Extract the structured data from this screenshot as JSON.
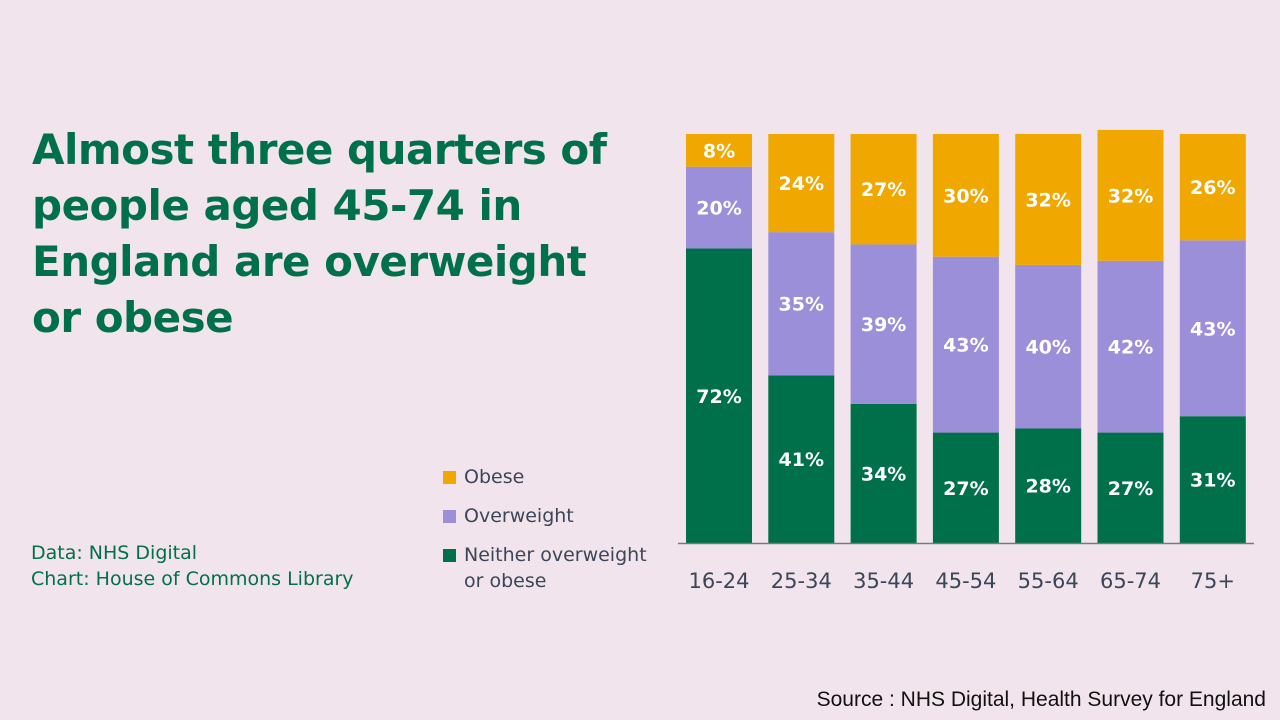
{
  "title": "Almost three quarters of people aged 45-74 in England are overweight or obese",
  "credits": {
    "data": "Data: NHS Digital",
    "chart": "Chart: House of Commons Library"
  },
  "source": "Source : NHS Digital, Health Survey for England",
  "legend": {
    "placement": "left of chart, bottom",
    "items": [
      {
        "label": "Obese",
        "color": "#f0a800"
      },
      {
        "label": "Overweight",
        "color": "#9b8fd9"
      },
      {
        "label": "Neither overweight or obese",
        "color": "#00704a"
      }
    ]
  },
  "chart_data": {
    "type": "bar",
    "stacked": true,
    "categories": [
      "16-24",
      "25-34",
      "35-44",
      "45-54",
      "55-64",
      "65-74",
      "75+"
    ],
    "series": [
      {
        "name": "Neither overweight or obese",
        "color": "#00704a",
        "values": [
          72,
          41,
          34,
          27,
          28,
          27,
          31
        ]
      },
      {
        "name": "Overweight",
        "color": "#9b8fd9",
        "values": [
          20,
          35,
          39,
          43,
          40,
          42,
          43
        ]
      },
      {
        "name": "Obese",
        "color": "#f0a800",
        "values": [
          8,
          24,
          27,
          30,
          32,
          32,
          26
        ]
      }
    ],
    "value_suffix": "%",
    "ylim": [
      0,
      100
    ],
    "grid": false,
    "data_labels": true
  }
}
